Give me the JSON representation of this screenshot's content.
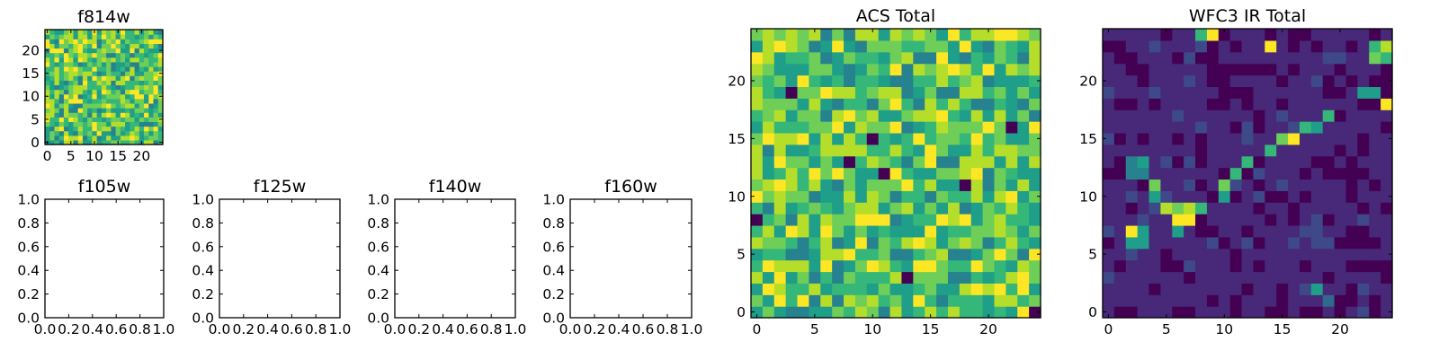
{
  "figure": {
    "description_title": "",
    "colormap": [
      "#440154",
      "#482878",
      "#3e4989",
      "#31688e",
      "#26828e",
      "#1f9e89",
      "#35b779",
      "#6ece58",
      "#b5de2b",
      "#fde725"
    ]
  },
  "chart_data": [
    {
      "type": "heatmap",
      "title": "f814w",
      "grid": [
        25,
        25
      ],
      "xlim": [
        -0.5,
        24.5
      ],
      "ylim": [
        -0.5,
        24.5
      ],
      "x_ticks": [
        "0",
        "5",
        "10",
        "15",
        "20"
      ],
      "y_ticks": [
        "0",
        "5",
        "10",
        "15",
        "20"
      ],
      "value_range": [
        0,
        1
      ],
      "pattern": "noise",
      "seed": 11
    },
    {
      "type": "empty",
      "title": "f105w",
      "xlim": [
        0,
        1
      ],
      "ylim": [
        0,
        1
      ],
      "x_ticks": [
        "0.0",
        "0.2",
        "0.4",
        "0.6",
        "0.8",
        "1.0"
      ],
      "y_ticks": [
        "0.0",
        "0.2",
        "0.4",
        "0.6",
        "0.8",
        "1.0"
      ]
    },
    {
      "type": "empty",
      "title": "f125w",
      "xlim": [
        0,
        1
      ],
      "ylim": [
        0,
        1
      ],
      "x_ticks": [
        "0.0",
        "0.2",
        "0.4",
        "0.6",
        "0.8",
        "1.0"
      ],
      "y_ticks": [
        "0.0",
        "0.2",
        "0.4",
        "0.6",
        "0.8",
        "1.0"
      ]
    },
    {
      "type": "empty",
      "title": "f140w",
      "xlim": [
        0,
        1
      ],
      "ylim": [
        0,
        1
      ],
      "x_ticks": [
        "0.0",
        "0.2",
        "0.4",
        "0.6",
        "0.8",
        "1.0"
      ],
      "y_ticks": [
        "0.0",
        "0.2",
        "0.4",
        "0.6",
        "0.8",
        "1.0"
      ]
    },
    {
      "type": "empty",
      "title": "f160w",
      "xlim": [
        0,
        1
      ],
      "ylim": [
        0,
        1
      ],
      "x_ticks": [
        "0.0",
        "0.2",
        "0.4",
        "0.6",
        "0.8",
        "1.0"
      ],
      "y_ticks": [
        "0.0",
        "0.2",
        "0.4",
        "0.6",
        "0.8",
        "1.0"
      ]
    },
    {
      "type": "heatmap",
      "title": "ACS Total",
      "grid": [
        25,
        25
      ],
      "xlim": [
        -0.5,
        24.5
      ],
      "ylim": [
        -0.5,
        24.5
      ],
      "x_ticks": [
        "0",
        "5",
        "10",
        "15",
        "20"
      ],
      "y_ticks": [
        "0",
        "5",
        "10",
        "15",
        "20"
      ],
      "value_range": [
        0,
        1
      ],
      "pattern": "noise",
      "seed": 37,
      "dark_cells": [
        [
          3,
          19
        ],
        [
          10,
          15
        ],
        [
          8,
          13
        ],
        [
          18,
          11
        ],
        [
          0,
          8
        ],
        [
          11,
          12
        ],
        [
          24,
          0
        ],
        [
          22,
          16
        ],
        [
          13,
          3
        ]
      ]
    },
    {
      "type": "heatmap",
      "title": "WFC3 IR Total",
      "grid": [
        25,
        25
      ],
      "xlim": [
        -0.5,
        24.5
      ],
      "ylim": [
        -0.5,
        24.5
      ],
      "x_ticks": [
        "0",
        "5",
        "10",
        "15",
        "20"
      ],
      "y_ticks": [
        "0",
        "5",
        "10",
        "15",
        "20"
      ],
      "value_range": [
        0,
        1
      ],
      "pattern": "sparse-arc",
      "seed": 53,
      "bright_cells": [
        [
          2,
          7,
          0.95
        ],
        [
          3,
          7,
          0.55
        ],
        [
          2,
          6,
          0.5
        ],
        [
          3,
          6,
          0.6
        ],
        [
          2,
          13,
          0.45
        ],
        [
          3,
          13,
          0.5
        ],
        [
          2,
          12,
          0.45
        ],
        [
          3,
          12,
          0.45
        ],
        [
          4,
          11,
          0.75
        ],
        [
          4,
          10,
          0.55
        ],
        [
          5,
          9,
          0.9
        ],
        [
          6,
          9,
          0.75
        ],
        [
          6,
          8,
          0.95
        ],
        [
          7,
          8,
          0.95
        ],
        [
          7,
          9,
          0.9
        ],
        [
          8,
          9,
          0.7
        ],
        [
          6,
          7,
          0.5
        ],
        [
          10,
          10,
          0.6
        ],
        [
          10,
          11,
          0.8
        ],
        [
          11,
          12,
          0.7
        ],
        [
          12,
          13,
          0.65
        ],
        [
          14,
          14,
          0.7
        ],
        [
          15,
          15,
          0.8
        ],
        [
          16,
          15,
          0.95
        ],
        [
          17,
          16,
          0.7
        ],
        [
          18,
          16,
          0.55
        ],
        [
          19,
          17,
          0.7
        ],
        [
          9,
          24,
          0.95
        ],
        [
          8,
          24,
          0.7
        ],
        [
          14,
          23,
          0.95
        ],
        [
          24,
          23,
          0.85
        ],
        [
          23,
          23,
          0.7
        ],
        [
          23,
          22,
          0.8
        ],
        [
          24,
          22,
          0.65
        ],
        [
          22,
          19,
          0.5
        ],
        [
          23,
          19,
          0.55
        ],
        [
          24,
          18,
          0.95
        ],
        [
          18,
          2,
          0.55
        ],
        [
          19,
          1,
          0.3
        ]
      ]
    }
  ]
}
